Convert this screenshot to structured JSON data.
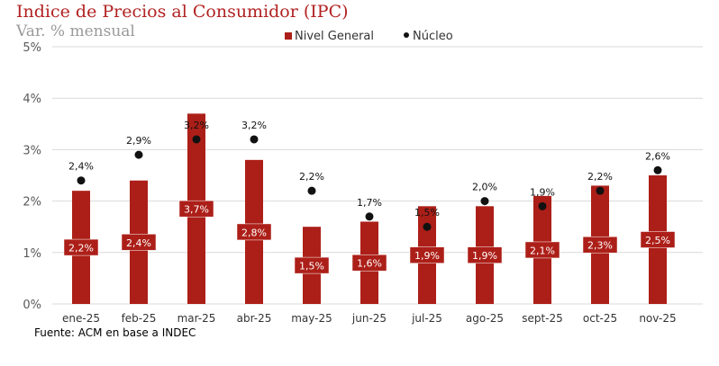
{
  "chart_data": {
    "type": "bar",
    "title": "Indice de Precios al Consumidor (IPC)",
    "subtitle": "Var. % mensual",
    "categories": [
      "ene-25",
      "feb-25",
      "mar-25",
      "abr-25",
      "may-25",
      "jun-25",
      "jul-25",
      "ago-25",
      "sept-25",
      "oct-25",
      "nov-25"
    ],
    "series": [
      {
        "name": "Nivel General",
        "kind": "bar",
        "color": "#ac1f18",
        "values": [
          2.2,
          2.4,
          3.7,
          2.8,
          1.5,
          1.6,
          1.9,
          1.9,
          2.1,
          2.3,
          2.5
        ],
        "labels": [
          "2,2%",
          "2,4%",
          "3,7%",
          "2,8%",
          "1,5%",
          "1,6%",
          "1,9%",
          "1,9%",
          "2,1%",
          "2,3%",
          "2,5%"
        ]
      },
      {
        "name": "Núcleo",
        "kind": "scatter",
        "color": "#111111",
        "values": [
          2.4,
          2.9,
          3.2,
          3.2,
          2.2,
          1.7,
          1.5,
          2.0,
          1.9,
          2.2,
          2.6
        ],
        "labels": [
          "2,4%",
          "2,9%",
          "3,2%",
          "3,2%",
          "2,2%",
          "1,7%",
          "1,5%",
          "2,0%",
          "1,9%",
          "2,2%",
          "2,6%"
        ]
      }
    ],
    "ylim": [
      0,
      5
    ],
    "yticks": [
      "0%",
      "1%",
      "2%",
      "3%",
      "4%",
      "5%"
    ],
    "grid": true,
    "legend": "top-center",
    "source": "Fuente: ACM en base a INDEC"
  }
}
